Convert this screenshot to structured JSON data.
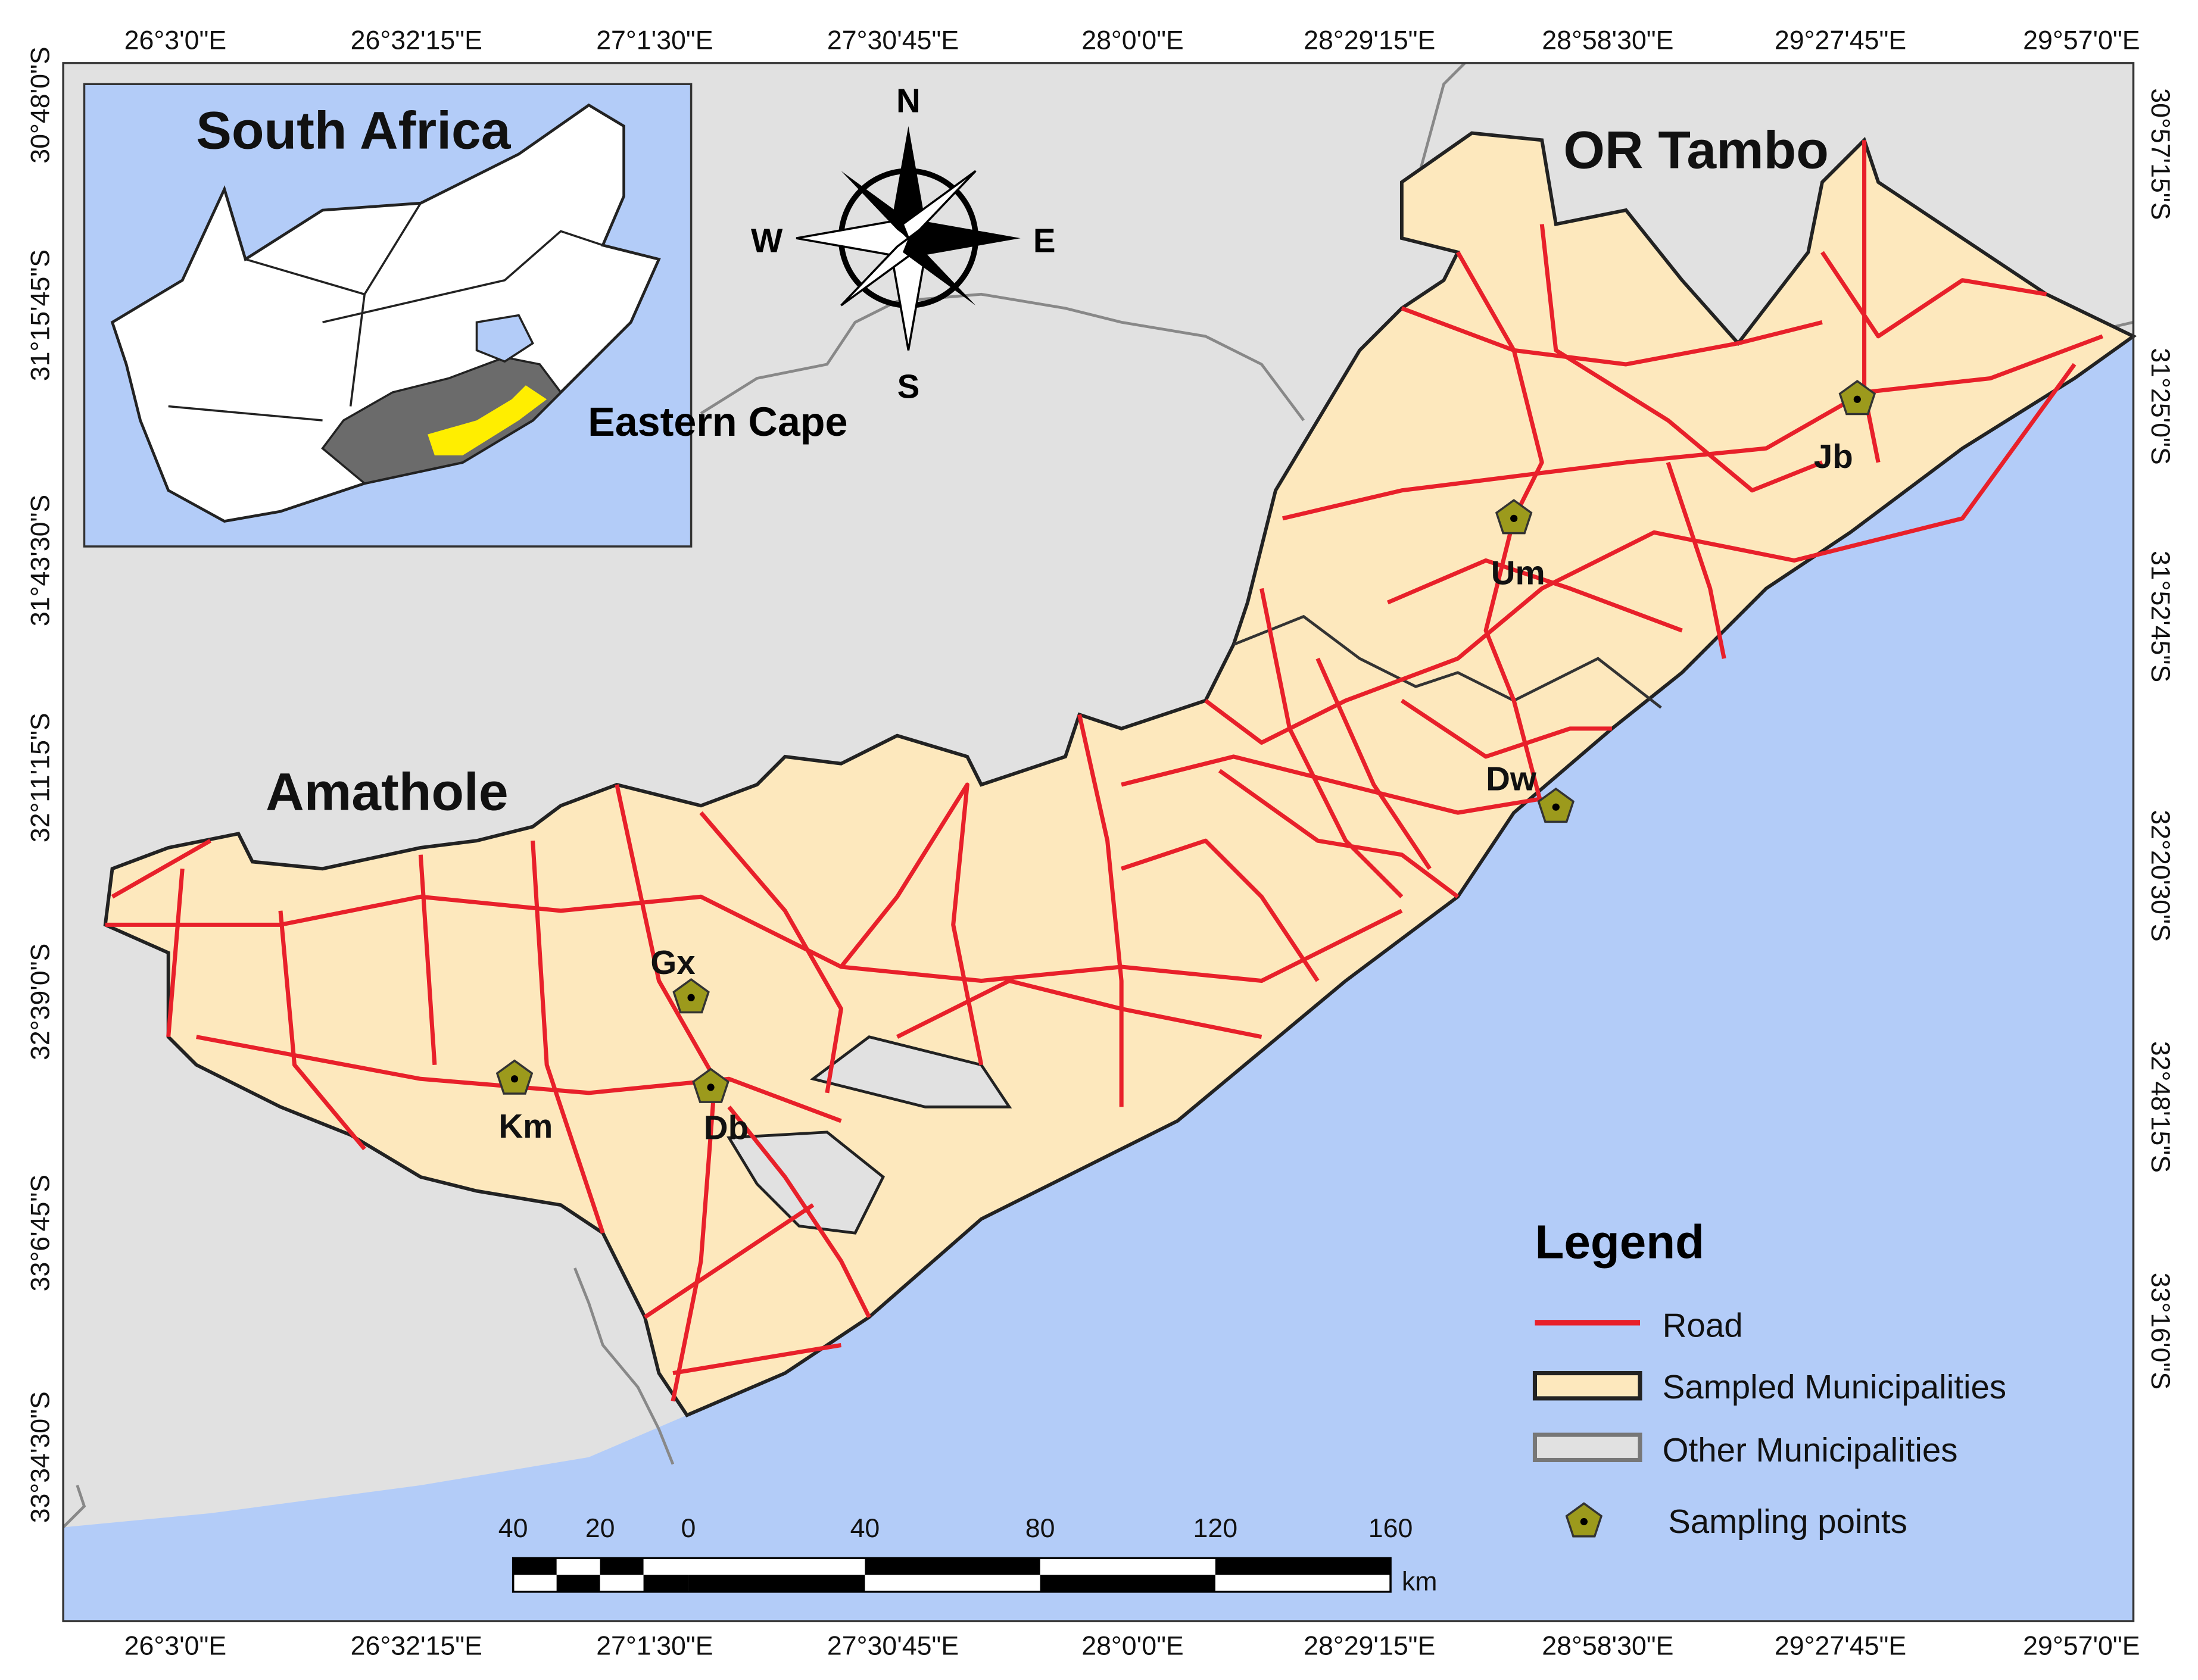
{
  "map": {
    "lon_labels": [
      "26°3'0\"E",
      "26°32'15\"E",
      "27°1'30\"E",
      "27°30'45\"E",
      "28°0'0\"E",
      "28°29'15\"E",
      "28°58'30\"E",
      "29°27'45\"E",
      "29°57'0\"E"
    ],
    "lat_labels_left": [
      "30°48'0\"S",
      "31°15'45\"S",
      "31°43'30\"S",
      "32°11'15\"S",
      "32°39'0\"S",
      "33°6'45\"S",
      "33°34'30\"S"
    ],
    "lat_labels_right": [
      "30°57'15\"S",
      "31°25'0\"S",
      "31°52'45\"S",
      "32°20'30\"S",
      "32°48'15\"S",
      "33°16'0\"S"
    ],
    "inset": {
      "country": "South Africa",
      "province": "Eastern Cape"
    },
    "regions": [
      "OR Tambo",
      "Amathole"
    ],
    "compass": {
      "n": "N",
      "s": "S",
      "e": "E",
      "w": "W"
    },
    "sampling_points": [
      "Jb",
      "Um",
      "Dw",
      "Gx",
      "Km",
      "Db"
    ],
    "scale_bar": {
      "labels": [
        40,
        20,
        0,
        40,
        80,
        120,
        160
      ],
      "unit": "km"
    }
  },
  "legend": {
    "title": "Legend",
    "items": [
      "Road",
      "Sampled Municipalities",
      "Other Municipalities",
      "Sampling points"
    ]
  }
}
